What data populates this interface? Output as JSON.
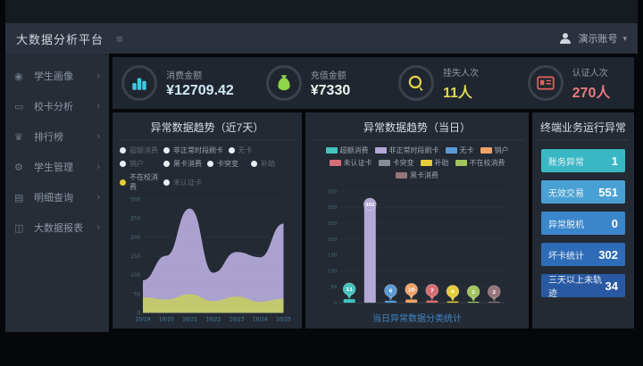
{
  "header": {
    "title": "大数据分析平台",
    "collapse_icon": "≡",
    "user": "演示账号",
    "caret": "▾"
  },
  "sidebar": {
    "items": [
      {
        "label": "学生画像",
        "icon": "student-profile-icon"
      },
      {
        "label": "校卡分析",
        "icon": "campus-card-icon"
      },
      {
        "label": "排行榜",
        "icon": "ranking-icon"
      },
      {
        "label": "学生管理",
        "icon": "student-manage-icon"
      },
      {
        "label": "明细查询",
        "icon": "detail-query-icon"
      },
      {
        "label": "大数据报表",
        "icon": "bigdata-report-icon"
      }
    ],
    "chevron": "›"
  },
  "kpis": [
    {
      "label": "消费金额",
      "value": "¥12709.42",
      "accent": "#3fc8e4",
      "value_color": "#cfeaf5",
      "icon": "consume-coins-icon"
    },
    {
      "label": "充值金额",
      "value": "¥7330",
      "accent": "#8ed64a",
      "value_color": "#eef5ee",
      "icon": "moneybag-icon"
    },
    {
      "label": "挂失人次",
      "value": "11人",
      "accent": "#e5d24a",
      "value_color": "#e0dc52",
      "icon": "loss-report-icon"
    },
    {
      "label": "认证人次",
      "value": "270人",
      "accent": "#e26360",
      "value_color": "#e87b84",
      "icon": "idcard-icon"
    }
  ],
  "chart_data": [
    {
      "type": "area",
      "title": "异常数据趋势（近7天）",
      "x": [
        "10/19",
        "10/20",
        "10/21",
        "10/22",
        "10/23",
        "10/24",
        "10/25"
      ],
      "series": [
        {
          "name": "非正常时段刷卡",
          "color": "#b3a8d8",
          "values": [
            85,
            150,
            275,
            105,
            160,
            146,
            235
          ]
        },
        {
          "name": "不在校消费",
          "color": "#c3ca68",
          "values": [
            40,
            34,
            48,
            30,
            42,
            28,
            36
          ]
        }
      ],
      "ylim": [
        0,
        300
      ],
      "ytick_step": 50,
      "grid": true,
      "legend_position": "top",
      "legend": [
        {
          "label": "超额消费",
          "dim": true
        },
        {
          "label": "非正常时段刷卡",
          "dim": false,
          "wide": true
        },
        {
          "label": "无卡",
          "dim": true
        },
        {
          "label": "销户",
          "dim": true
        },
        {
          "label": "黑卡消费",
          "dim": false
        },
        {
          "label": "卡突变",
          "dim": false
        },
        {
          "label": "补助",
          "dim": true
        },
        {
          "label": "不在校消费",
          "dim": false,
          "dot": "#e6cb3c"
        },
        {
          "label": "未认证卡",
          "dim": true
        }
      ],
      "default_dot": "#e9eef3"
    },
    {
      "type": "bar",
      "title": "异常数据趋势（当日）",
      "categories": [
        "超额消费",
        "非正常时段刷卡",
        "无卡",
        "销户",
        "未认证卡",
        "补助",
        "不在校消费",
        "黑卡消费"
      ],
      "values": [
        11,
        302,
        6,
        10,
        7,
        4,
        2,
        2
      ],
      "colors": [
        "#45c2bd",
        "#b3a8d8",
        "#5b9bd5",
        "#f0a368",
        "#d76d76",
        "#e6cb3c",
        "#a2c45e",
        "#96767b"
      ],
      "ylim": [
        0,
        350
      ],
      "ytick_step": 50,
      "grid": true,
      "note": "当日异常数据分类统计",
      "legend": [
        {
          "label": "超额消费",
          "color": "#45c2bd"
        },
        {
          "label": "非正常时段刷卡",
          "color": "#b3a8d8"
        },
        {
          "label": "无卡",
          "color": "#5b9bd5"
        },
        {
          "label": "销户",
          "color": "#f0a368"
        },
        {
          "label": "未认证卡",
          "color": "#d76d76"
        },
        {
          "label": "卡突变",
          "color": "#878d98"
        },
        {
          "label": "补助",
          "color": "#e6cb3c"
        },
        {
          "label": "不在校消费",
          "color": "#a2c45e"
        },
        {
          "label": "黑卡消费",
          "color": "#96767b"
        }
      ]
    }
  ],
  "stats": {
    "title": "终端业务运行异常",
    "rows": [
      {
        "label": "账务异常",
        "value": "1",
        "color": "#3ab7c4"
      },
      {
        "label": "无效交易",
        "value": "551",
        "color": "#49a0d4"
      },
      {
        "label": "异常脱机",
        "value": "0",
        "color": "#3a86cb"
      },
      {
        "label": "坏卡统计",
        "value": "302",
        "color": "#2f6cb8"
      },
      {
        "label": "三天以上未轨迹",
        "value": "34",
        "color": "#2a59a3"
      }
    ]
  }
}
